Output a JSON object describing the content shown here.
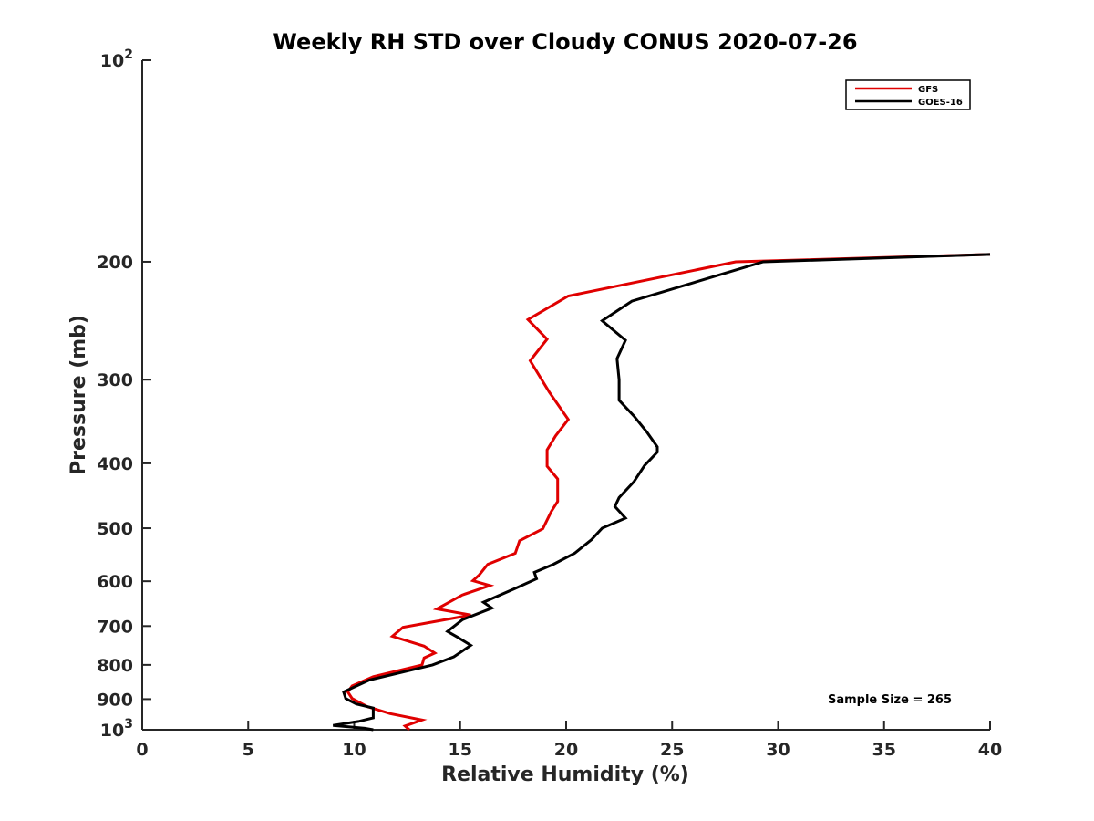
{
  "chart_data": {
    "type": "line",
    "title": "Weekly RH STD over Cloudy CONUS 2020-07-26",
    "xlabel": "Relative Humidity (%)",
    "ylabel": "Pressure (mb)",
    "xlim": [
      0,
      40
    ],
    "ylim": [
      100,
      1000
    ],
    "yscale": "log",
    "y_reversed": true,
    "x_ticks": [
      "0",
      "5",
      "10",
      "15",
      "20",
      "25",
      "30",
      "35",
      "40"
    ],
    "y_ticks": [
      {
        "value": 100,
        "label_base": "10",
        "label_exp": "2"
      },
      {
        "value": 200,
        "label": "200"
      },
      {
        "value": 300,
        "label": "300"
      },
      {
        "value": 400,
        "label": "400"
      },
      {
        "value": 500,
        "label": "500"
      },
      {
        "value": 600,
        "label": "600"
      },
      {
        "value": 700,
        "label": "700"
      },
      {
        "value": 800,
        "label": "800"
      },
      {
        "value": 900,
        "label": "900"
      },
      {
        "value": 1000,
        "label_base": "10",
        "label_exp": "3"
      }
    ],
    "legend_position": "top-right",
    "annotation": "Sample Size = 265",
    "series": [
      {
        "name": "GFS",
        "color": "#e00000",
        "points": [
          [
            40,
            195
          ],
          [
            28,
            200
          ],
          [
            20.1,
            225
          ],
          [
            18.2,
            244
          ],
          [
            19.1,
            261
          ],
          [
            18.3,
            281
          ],
          [
            19.2,
            313
          ],
          [
            20.1,
            344
          ],
          [
            19.5,
            364
          ],
          [
            19.1,
            382
          ],
          [
            19.1,
            404
          ],
          [
            19.6,
            422
          ],
          [
            19.6,
            456
          ],
          [
            19.3,
            472
          ],
          [
            18.9,
            501
          ],
          [
            17.8,
            522
          ],
          [
            17.6,
            545
          ],
          [
            16.3,
            566
          ],
          [
            15.9,
            587
          ],
          [
            15.6,
            599
          ],
          [
            16.4,
            609
          ],
          [
            15.1,
            629
          ],
          [
            13.9,
            660
          ],
          [
            15.5,
            674
          ],
          [
            12.3,
            703
          ],
          [
            11.8,
            725
          ],
          [
            13.3,
            750
          ],
          [
            13.8,
            768
          ],
          [
            13.3,
            781
          ],
          [
            13.2,
            800
          ],
          [
            10.9,
            833
          ],
          [
            9.9,
            860
          ],
          [
            9.7,
            878
          ],
          [
            9.9,
            898
          ],
          [
            10.6,
            923
          ],
          [
            11.7,
            946
          ],
          [
            13.2,
            967
          ],
          [
            12.4,
            987
          ],
          [
            12.6,
            1000
          ]
        ]
      },
      {
        "name": "GOES-16",
        "color": "#000000",
        "points": [
          [
            40,
            195
          ],
          [
            29.3,
            200
          ],
          [
            23.1,
            229
          ],
          [
            21.7,
            245
          ],
          [
            22.8,
            262
          ],
          [
            22.4,
            279
          ],
          [
            22.5,
            300
          ],
          [
            22.5,
            322
          ],
          [
            23.2,
            340
          ],
          [
            23.8,
            359
          ],
          [
            24.3,
            378
          ],
          [
            24.3,
            385
          ],
          [
            23.7,
            403
          ],
          [
            23.2,
            426
          ],
          [
            22.5,
            450
          ],
          [
            22.3,
            464
          ],
          [
            22.8,
            483
          ],
          [
            21.7,
            500
          ],
          [
            21.2,
            520
          ],
          [
            20.4,
            545
          ],
          [
            19.4,
            566
          ],
          [
            18.5,
            582
          ],
          [
            18.6,
            595
          ],
          [
            17.6,
            615
          ],
          [
            16.1,
            645
          ],
          [
            16.5,
            658
          ],
          [
            15.1,
            685
          ],
          [
            14.4,
            713
          ],
          [
            14.9,
            728
          ],
          [
            15.5,
            748
          ],
          [
            14.7,
            778
          ],
          [
            13.7,
            800
          ],
          [
            10.7,
            843
          ],
          [
            9.5,
            878
          ],
          [
            9.6,
            898
          ],
          [
            10.1,
            915
          ],
          [
            10.9,
            928
          ],
          [
            10.9,
            960
          ],
          [
            10.2,
            972
          ],
          [
            9.0,
            985
          ],
          [
            10.5,
            995
          ],
          [
            10.9,
            1000
          ]
        ]
      }
    ]
  }
}
